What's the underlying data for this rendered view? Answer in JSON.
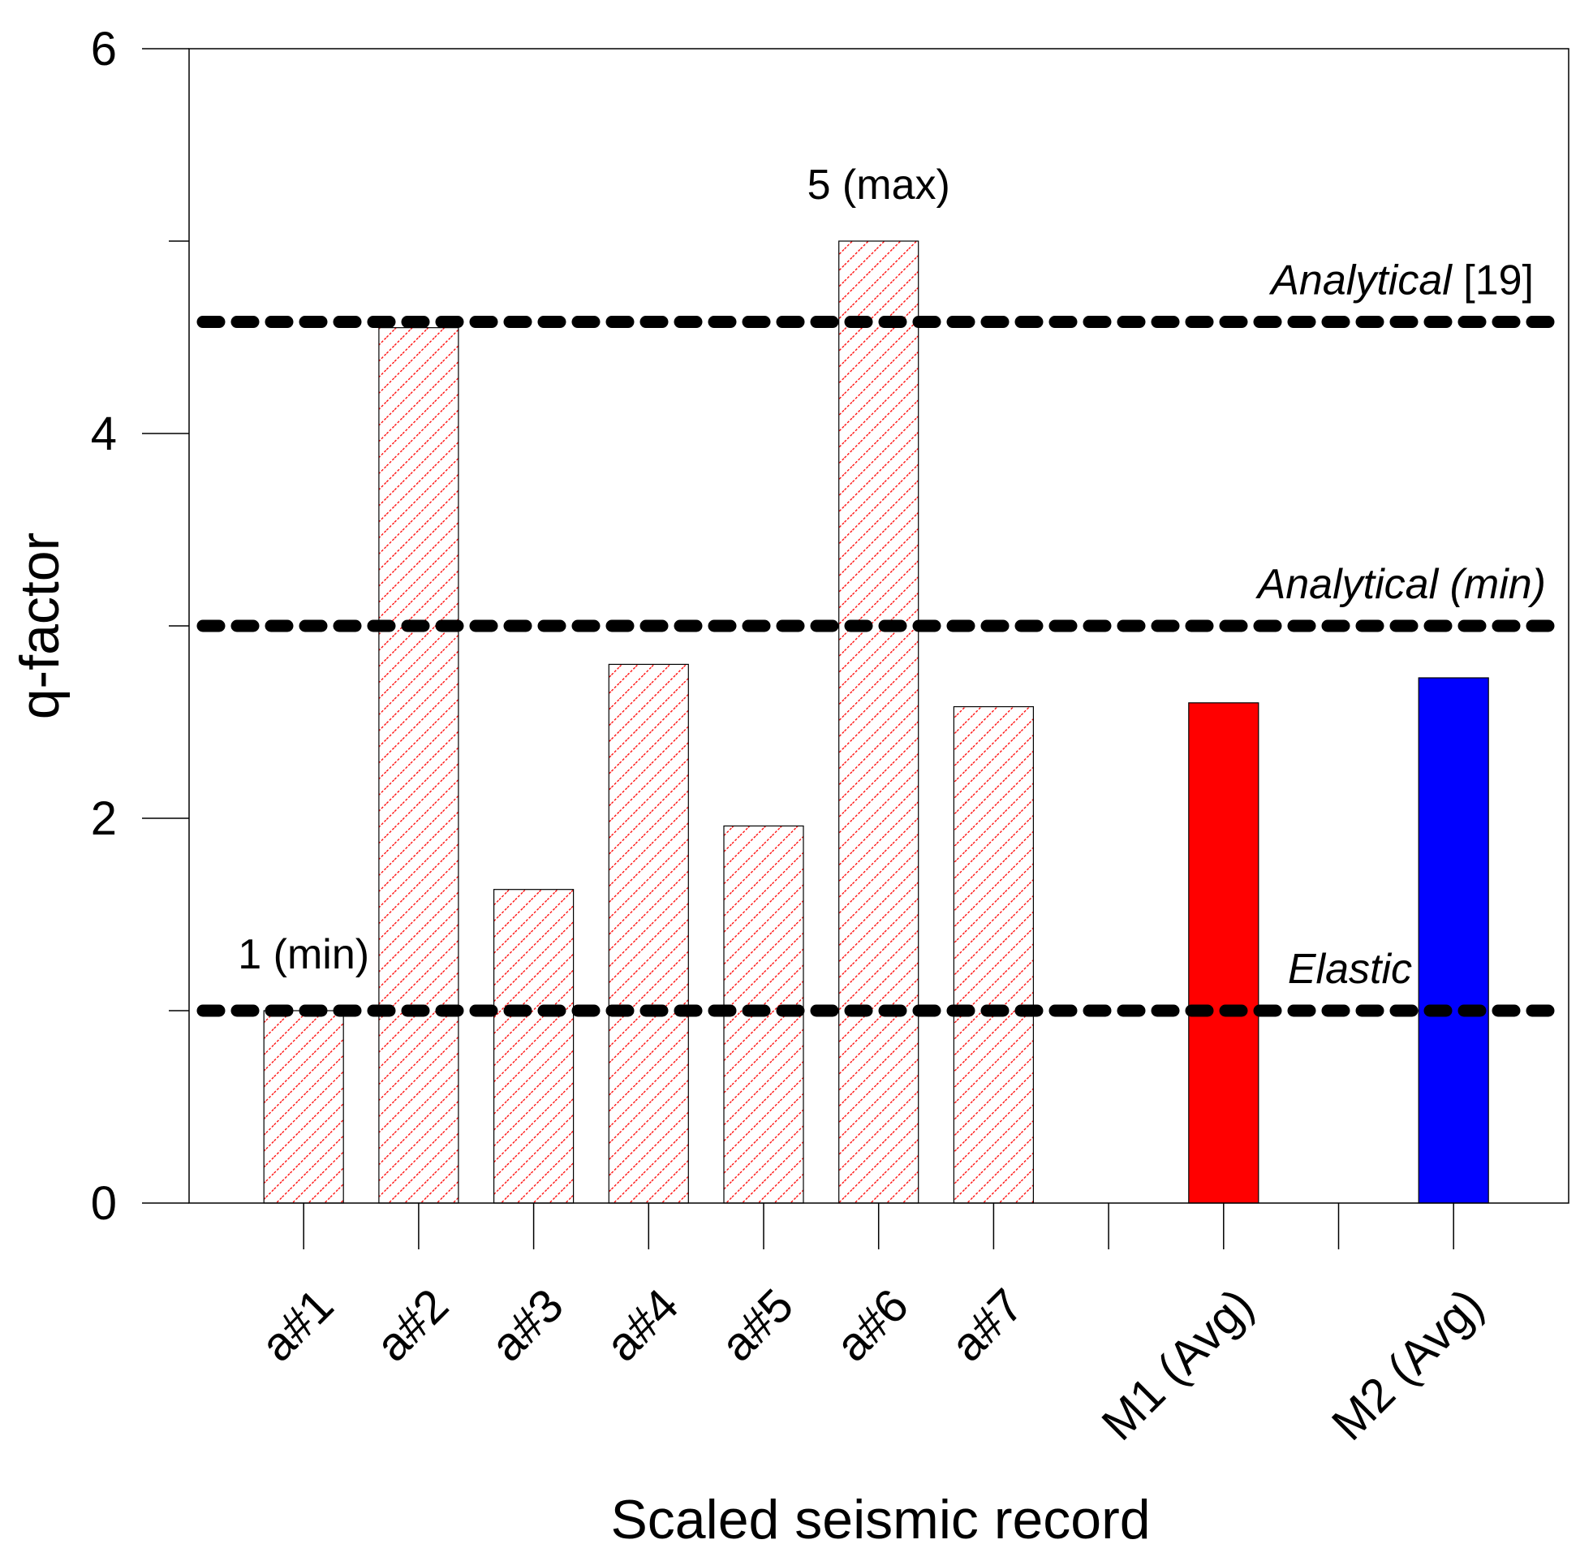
{
  "chart_data": {
    "type": "bar",
    "title": "",
    "xlabel": "Scaled seismic record",
    "ylabel": "q-factor",
    "ylim": [
      0,
      6
    ],
    "yticks": [
      0,
      2,
      4,
      6
    ],
    "grid": false,
    "categories": [
      "a#1",
      "a#2",
      "a#3",
      "a#4",
      "a#5",
      "a#6",
      "a#7",
      "M1 (Avg)",
      "M2 (Avg)"
    ],
    "category_positions": [
      1,
      2,
      3,
      4,
      5,
      6,
      7,
      9,
      11
    ],
    "values": [
      1.0,
      4.55,
      1.63,
      2.8,
      1.96,
      5.0,
      2.58,
      2.6,
      2.73
    ],
    "series_styles": [
      "hatched-red",
      "hatched-red",
      "hatched-red",
      "hatched-red",
      "hatched-red",
      "hatched-red",
      "hatched-red",
      "solid-red",
      "solid-blue"
    ],
    "reference_lines": [
      {
        "name": "Analytical [19]",
        "label_italic": "Analytical",
        "label_regular": " [19]",
        "value": 4.58
      },
      {
        "name": "Analytical (min)",
        "label_italic": "Analytical (min)",
        "label_regular": "",
        "value": 3.0
      },
      {
        "name": "Elastic",
        "label_italic": "Elastic",
        "label_regular": "",
        "value": 1.0
      }
    ],
    "annotations": [
      {
        "text": "5 (max)",
        "category": "a#6",
        "value": 5.0
      },
      {
        "text": "1 (min)",
        "category": "a#1",
        "value": 1.0
      }
    ]
  },
  "colors": {
    "hatch": "#ff0000",
    "m1": "#ff0000",
    "m2": "#0000ff",
    "axis": "#000000",
    "reference_line": "#000000"
  }
}
